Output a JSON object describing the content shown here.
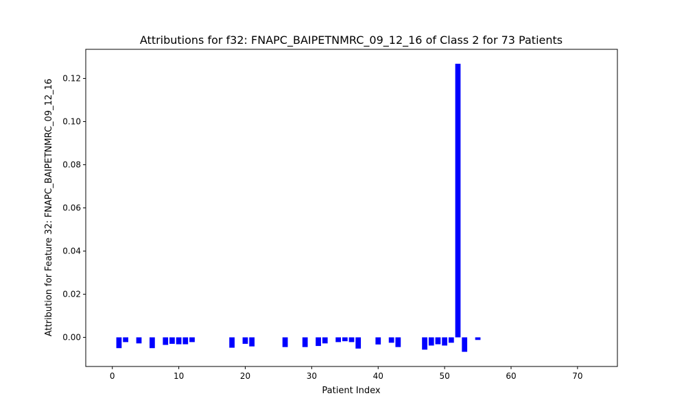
{
  "chart_data": {
    "type": "bar",
    "title": "Attributions for f32: FNAPC_BAIPETNMRC_09_12_16 of Class 2 for 73 Patients",
    "xlabel": "Patient Index",
    "ylabel": "Attribution for Feature 32: FNAPC_BAIPETNMRC_09_12_16",
    "xlim": [
      -4,
      76
    ],
    "ylim": [
      -0.0135,
      0.1335
    ],
    "x_ticks": [
      0,
      10,
      20,
      30,
      40,
      50,
      60,
      70
    ],
    "y_ticks": [
      0.0,
      0.02,
      0.04,
      0.06,
      0.08,
      0.1,
      0.12
    ],
    "y_tick_labels": [
      "0.00",
      "0.02",
      "0.04",
      "0.06",
      "0.08",
      "0.10",
      "0.12"
    ],
    "bar_width": 0.8,
    "bar_color": "#0000ff",
    "grid": false,
    "x": [
      0,
      1,
      2,
      3,
      4,
      5,
      6,
      7,
      8,
      9,
      10,
      11,
      12,
      13,
      14,
      15,
      16,
      17,
      18,
      19,
      20,
      21,
      22,
      23,
      24,
      25,
      26,
      27,
      28,
      29,
      30,
      31,
      32,
      33,
      34,
      35,
      36,
      37,
      38,
      39,
      40,
      41,
      42,
      43,
      44,
      45,
      46,
      47,
      48,
      49,
      50,
      51,
      52,
      53,
      54,
      55,
      56,
      57,
      58,
      59,
      60,
      61,
      62,
      63,
      64,
      65,
      66,
      67,
      68,
      69,
      70,
      71,
      72
    ],
    "values": [
      0,
      -0.005,
      -0.0022,
      0,
      -0.0028,
      0,
      -0.005,
      0,
      -0.0035,
      -0.003,
      -0.0032,
      -0.0032,
      -0.0022,
      0,
      0,
      0,
      0,
      0,
      -0.0048,
      0,
      -0.003,
      -0.0042,
      0,
      0,
      0,
      0,
      -0.0045,
      0,
      0,
      -0.0045,
      0,
      -0.004,
      -0.0028,
      0,
      -0.0022,
      -0.0018,
      -0.0022,
      -0.0052,
      0,
      0,
      -0.0033,
      0,
      -0.0025,
      -0.0045,
      0,
      0,
      0,
      -0.0057,
      -0.0038,
      -0.0032,
      -0.0038,
      -0.0025,
      0.1268,
      -0.0067,
      0,
      -0.0012,
      0,
      0,
      0,
      0,
      0,
      0,
      0,
      0,
      0,
      0,
      0,
      0,
      0,
      0,
      0,
      0,
      0
    ]
  }
}
